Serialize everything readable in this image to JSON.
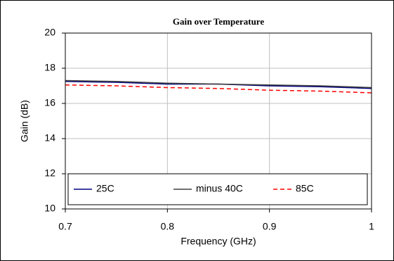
{
  "chart_data": {
    "type": "line",
    "title": "Gain over Temperature",
    "x_label": "Frequency (GHz)",
    "y_label": "Gain (dB)",
    "x": [
      0.7,
      0.75,
      0.8,
      0.85,
      0.9,
      0.95,
      1
    ],
    "series": [
      {
        "name": "25C",
        "color": "#000080",
        "dashed": false,
        "values": [
          17.25,
          17.2,
          17.1,
          17.1,
          17.0,
          16.95,
          16.85
        ]
      },
      {
        "name": "minus 40C",
        "color": "#404040",
        "dashed": false,
        "values": [
          17.3,
          17.25,
          17.15,
          17.1,
          17.05,
          17.0,
          16.9
        ]
      },
      {
        "name": "85C",
        "color": "#ff0000",
        "dashed": true,
        "values": [
          17.05,
          17.0,
          16.9,
          16.85,
          16.75,
          16.7,
          16.6
        ]
      }
    ],
    "xlim": [
      0.7,
      1
    ],
    "xticks": [
      0.7,
      0.8,
      0.9,
      1
    ],
    "ylim": [
      10,
      20
    ],
    "yticks": [
      10,
      12,
      14,
      16,
      18,
      20
    ],
    "grid": true,
    "legend": "bottom"
  }
}
